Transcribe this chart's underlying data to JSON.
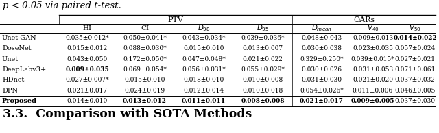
{
  "title_text": "p < 0.05 via paired t-test.",
  "section_heading": "3.3.  Comparison with SOTA Methods",
  "rows": [
    {
      "name": "Unet-GAN",
      "is_proposed": false,
      "values": [
        {
          "text": "0.035±0.012*",
          "bold": false
        },
        {
          "text": "0.050±0.041*",
          "bold": false
        },
        {
          "text": "0.043±0.034*",
          "bold": false
        },
        {
          "text": "0.039±0.036*",
          "bold": false
        },
        {
          "text": "0.048±0.043",
          "bold": false
        },
        {
          "text": "0.009±0.013",
          "bold": false
        },
        {
          "text": "0.014±0.022",
          "bold": true
        }
      ]
    },
    {
      "name": "DoseNet",
      "is_proposed": false,
      "values": [
        {
          "text": "0.015±0.012",
          "bold": false
        },
        {
          "text": "0.088±0.030*",
          "bold": false
        },
        {
          "text": "0.015±0.010",
          "bold": false
        },
        {
          "text": "0.013±0.007",
          "bold": false
        },
        {
          "text": "0.030±0.038",
          "bold": false
        },
        {
          "text": "0.023±0.035",
          "bold": false
        },
        {
          "text": "0.057±0.024",
          "bold": false
        }
      ]
    },
    {
      "name": "Unet",
      "is_proposed": false,
      "values": [
        {
          "text": "0.043±0.050",
          "bold": false
        },
        {
          "text": "0.172±0.050*",
          "bold": false
        },
        {
          "text": "0.047±0.048*",
          "bold": false
        },
        {
          "text": "0.021±0.022",
          "bold": false
        },
        {
          "text": "0.329±0.250*",
          "bold": false
        },
        {
          "text": "0.039±0.015*",
          "bold": false
        },
        {
          "text": "0.027±0.021",
          "bold": false
        }
      ]
    },
    {
      "name": "DeepLabv3+",
      "is_proposed": false,
      "values": [
        {
          "text": "0.009±0.035",
          "bold": true
        },
        {
          "text": "0.069±0.054*",
          "bold": false
        },
        {
          "text": "0.056±0.031*",
          "bold": false
        },
        {
          "text": "0.055±0.029*",
          "bold": false
        },
        {
          "text": "0.030±0.026",
          "bold": false
        },
        {
          "text": "0.031±0.053",
          "bold": false
        },
        {
          "text": "0.071±0.061",
          "bold": false
        }
      ]
    },
    {
      "name": "HDnet",
      "is_proposed": false,
      "values": [
        {
          "text": "0.027±0.007*",
          "bold": false
        },
        {
          "text": "0.015±0.010",
          "bold": false
        },
        {
          "text": "0.018±0.010",
          "bold": false
        },
        {
          "text": "0.010±0.008",
          "bold": false
        },
        {
          "text": "0.031±0.030",
          "bold": false
        },
        {
          "text": "0.021±0.020",
          "bold": false
        },
        {
          "text": "0.037±0.032",
          "bold": false
        }
      ]
    },
    {
      "name": "DPN",
      "is_proposed": false,
      "values": [
        {
          "text": "0.021±0.017",
          "bold": false
        },
        {
          "text": "0.024±0.019",
          "bold": false
        },
        {
          "text": "0.012±0.014",
          "bold": false
        },
        {
          "text": "0.010±0.018",
          "bold": false
        },
        {
          "text": "0.054±0.026*",
          "bold": false
        },
        {
          "text": "0.011±0.006",
          "bold": false
        },
        {
          "text": "0.046±0.005",
          "bold": false
        }
      ]
    },
    {
      "name": "Proposed",
      "is_proposed": true,
      "values": [
        {
          "text": "0.014±0.010",
          "bold": false
        },
        {
          "text": "0.013±0.012",
          "bold": true
        },
        {
          "text": "0.011±0.011",
          "bold": true
        },
        {
          "text": "0.008±0.008",
          "bold": true
        },
        {
          "text": "0.021±0.017",
          "bold": true
        },
        {
          "text": "0.009±0.005",
          "bold": true
        },
        {
          "text": "0.037±0.030",
          "bold": false
        }
      ]
    }
  ],
  "sub_labels": [
    "HI",
    "CI",
    "$D_{98}$",
    "$D_{95}$",
    "$D_{mean}$",
    "$V_{40}$",
    "$V_{50}$"
  ],
  "figsize": [
    6.4,
    1.94
  ],
  "dpi": 100
}
